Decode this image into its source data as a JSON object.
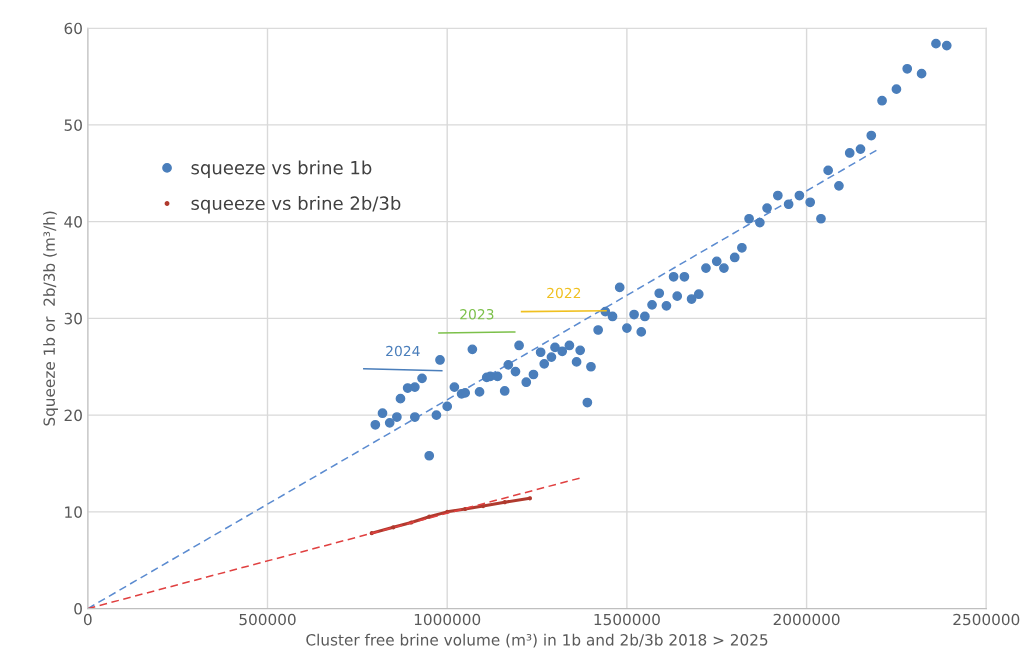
{
  "chart_data": {
    "type": "scatter",
    "xlabel": "Cluster free brine volume (m³) in 1b and 2b/3b 2018 > 2025",
    "ylabel": "Squeeze 1b or  2b/3b (m³/h)",
    "xlim": [
      0,
      2500000
    ],
    "xticks": [
      0,
      500000,
      1000000,
      1500000,
      2000000,
      2500000
    ],
    "ylim": [
      0,
      60
    ],
    "yticks": [
      0,
      10,
      20,
      30,
      40,
      50,
      60
    ],
    "grid": true,
    "legend": "top left",
    "series": [
      {
        "name": "squeeze vs brine 1b",
        "marker": "circle",
        "color": "#4a7ebb",
        "x": [
          800000,
          820000,
          840000,
          860000,
          870000,
          890000,
          910000,
          930000,
          910000,
          950000,
          970000,
          980000,
          1000000,
          1020000,
          1040000,
          1050000,
          1070000,
          1090000,
          1110000,
          1120000,
          1140000,
          1160000,
          1170000,
          1190000,
          1200000,
          1220000,
          1240000,
          1260000,
          1270000,
          1290000,
          1300000,
          1320000,
          1340000,
          1360000,
          1370000,
          1390000,
          1400000,
          1420000,
          1440000,
          1460000,
          1480000,
          1500000,
          1520000,
          1540000,
          1550000,
          1570000,
          1590000,
          1610000,
          1630000,
          1640000,
          1660000,
          1680000,
          1700000,
          1720000,
          1750000,
          1770000,
          1800000,
          1820000,
          1840000,
          1870000,
          1890000,
          1920000,
          1950000,
          1980000,
          2010000,
          2040000,
          2060000,
          2090000,
          2120000,
          2150000,
          2180000,
          2210000,
          2250000,
          2280000,
          2320000,
          2360000,
          2390000
        ],
        "values": [
          19.0,
          20.2,
          19.2,
          19.8,
          21.7,
          22.8,
          22.9,
          23.8,
          19.8,
          15.8,
          20.0,
          25.7,
          20.9,
          22.9,
          22.2,
          22.3,
          26.8,
          22.4,
          23.9,
          24.0,
          24.0,
          22.5,
          25.2,
          24.5,
          27.2,
          23.4,
          24.2,
          26.5,
          25.3,
          26.0,
          27.0,
          26.6,
          27.2,
          25.5,
          26.7,
          21.3,
          25.0,
          28.8,
          30.7,
          30.2,
          33.2,
          29.0,
          30.4,
          28.6,
          30.2,
          31.4,
          32.6,
          31.3,
          34.3,
          32.3,
          34.3,
          32.0,
          32.5,
          35.2,
          35.9,
          35.2,
          36.3,
          37.3,
          40.3,
          39.9,
          41.4,
          42.7,
          41.8,
          42.7,
          42.0,
          40.3,
          45.3,
          43.7,
          47.1,
          47.5,
          48.9,
          52.5,
          53.7,
          55.8,
          55.3,
          58.4,
          58.2
        ]
      },
      {
        "name": "squeeze vs brine 2b/3b",
        "type": "line",
        "marker": "circle",
        "line_style": "solid",
        "color": "#b03a2e",
        "x": [
          790000,
          850000,
          900000,
          950000,
          1000000,
          1050000,
          1100000,
          1160000,
          1230000
        ],
        "values": [
          7.8,
          8.4,
          8.9,
          9.5,
          10.0,
          10.3,
          10.6,
          11.0,
          11.4
        ]
      },
      {
        "type": "line",
        "marker": "none",
        "line_style": "dashed",
        "color": "#5b8bd0",
        "x": [
          0,
          2200000
        ],
        "values": [
          0,
          47.5
        ]
      },
      {
        "type": "line",
        "marker": "none",
        "line_style": "dashed",
        "color": "#e04040",
        "x": [
          0,
          1380000
        ],
        "values": [
          0,
          13.6
        ]
      },
      {
        "name": "2024",
        "type": "line",
        "marker": "none",
        "line_style": "solid",
        "color": "#4a7ebb",
        "x": [
          768000,
          985000
        ],
        "values": [
          24.8,
          24.6
        ]
      },
      {
        "name": "2023",
        "type": "line",
        "marker": "none",
        "line_style": "solid",
        "color": "#7cc04a",
        "x": [
          977000,
          1188000
        ],
        "values": [
          28.5,
          28.6
        ]
      },
      {
        "name": "2022",
        "type": "line",
        "marker": "none",
        "line_style": "solid",
        "color": "#f0c020",
        "x": [
          1207000,
          1442000
        ],
        "values": [
          30.7,
          30.8
        ]
      }
    ]
  }
}
